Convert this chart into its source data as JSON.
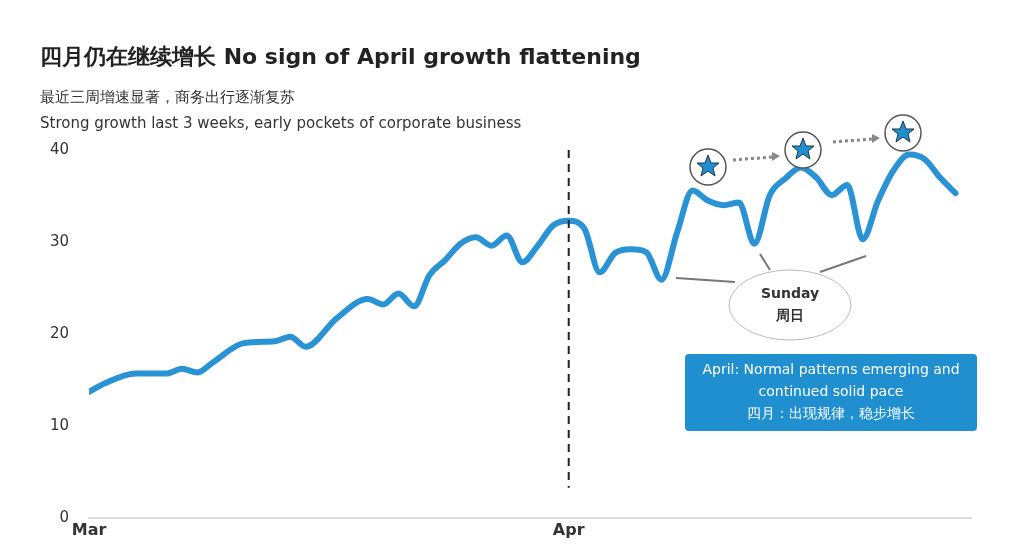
{
  "chart_data": {
    "type": "line",
    "title": "四月仍在继续增长 No sign of April growth flattening",
    "subtitle": "最近三周增速显著，商务出行逐渐复苏\nStrong growth last 3 weeks, early pockets of corporate business",
    "x": [
      "--03-01",
      "--03-02",
      "--03-04",
      "--03-06",
      "--03-07",
      "--03-08",
      "--03-09",
      "--03-11",
      "--03-13",
      "--03-14",
      "--03-15",
      "--03-17",
      "--03-19",
      "--03-20",
      "--03-21",
      "--03-22",
      "--03-23",
      "--03-24",
      "--03-25",
      "--03-26",
      "--03-27",
      "--03-28",
      "--03-29",
      "--03-30",
      "--03-31",
      "--04-01",
      "--04-02",
      "--04-03",
      "--04-04",
      "--04-05",
      "--04-06",
      "--04-07",
      "--04-08",
      "--04-09",
      "--04-10",
      "--04-11",
      "--04-12",
      "--04-13",
      "--04-14",
      "--04-15",
      "--04-16",
      "--04-17",
      "--04-18",
      "--04-19",
      "--04-20",
      "--04-21",
      "--04-22",
      "--04-23",
      "--04-24",
      "--04-25",
      "--04-26"
    ],
    "series": [
      {
        "color": "#2a93d5",
        "values": [
          13.7,
          14.6,
          15.7,
          15.7,
          16.2,
          15.8,
          16.9,
          19.0,
          19.2,
          19.7,
          18.6,
          21.7,
          23.8,
          23.2,
          24.4,
          23.0,
          26.4,
          28.0,
          29.8,
          30.5,
          29.6,
          30.7,
          27.8,
          29.6,
          31.8,
          32.3,
          31.5,
          26.7,
          28.8,
          29.2,
          28.9,
          25.9,
          31.0,
          35.6,
          34.5,
          34.0,
          34.3,
          29.8,
          35.1,
          36.9,
          38.1,
          37.0,
          35.1,
          36.2,
          30.3,
          34.5,
          37.8,
          39.5,
          39.0,
          37.0,
          35.3
        ]
      }
    ],
    "xlim": [
      "--03-01",
      "--04-27"
    ],
    "xticks": [
      {
        "value": "--03-01",
        "label": "Mar"
      },
      {
        "value": "--04-01",
        "label": "Apr"
      }
    ],
    "ylim": [
      0,
      40
    ],
    "yticks": [
      0,
      10,
      20,
      30,
      40
    ],
    "grid": false,
    "legend": false,
    "marker": "none",
    "line_style": "solid",
    "ref_lines": [
      {
        "axis": "x",
        "value": "--04-01",
        "color": "#222222",
        "line_style": "dashed"
      }
    ],
    "annotations": [
      "April: Normal patterns emerging and continued solid pace\n四月：出现规律，稳步增长",
      "Sunday\n周日"
    ]
  }
}
